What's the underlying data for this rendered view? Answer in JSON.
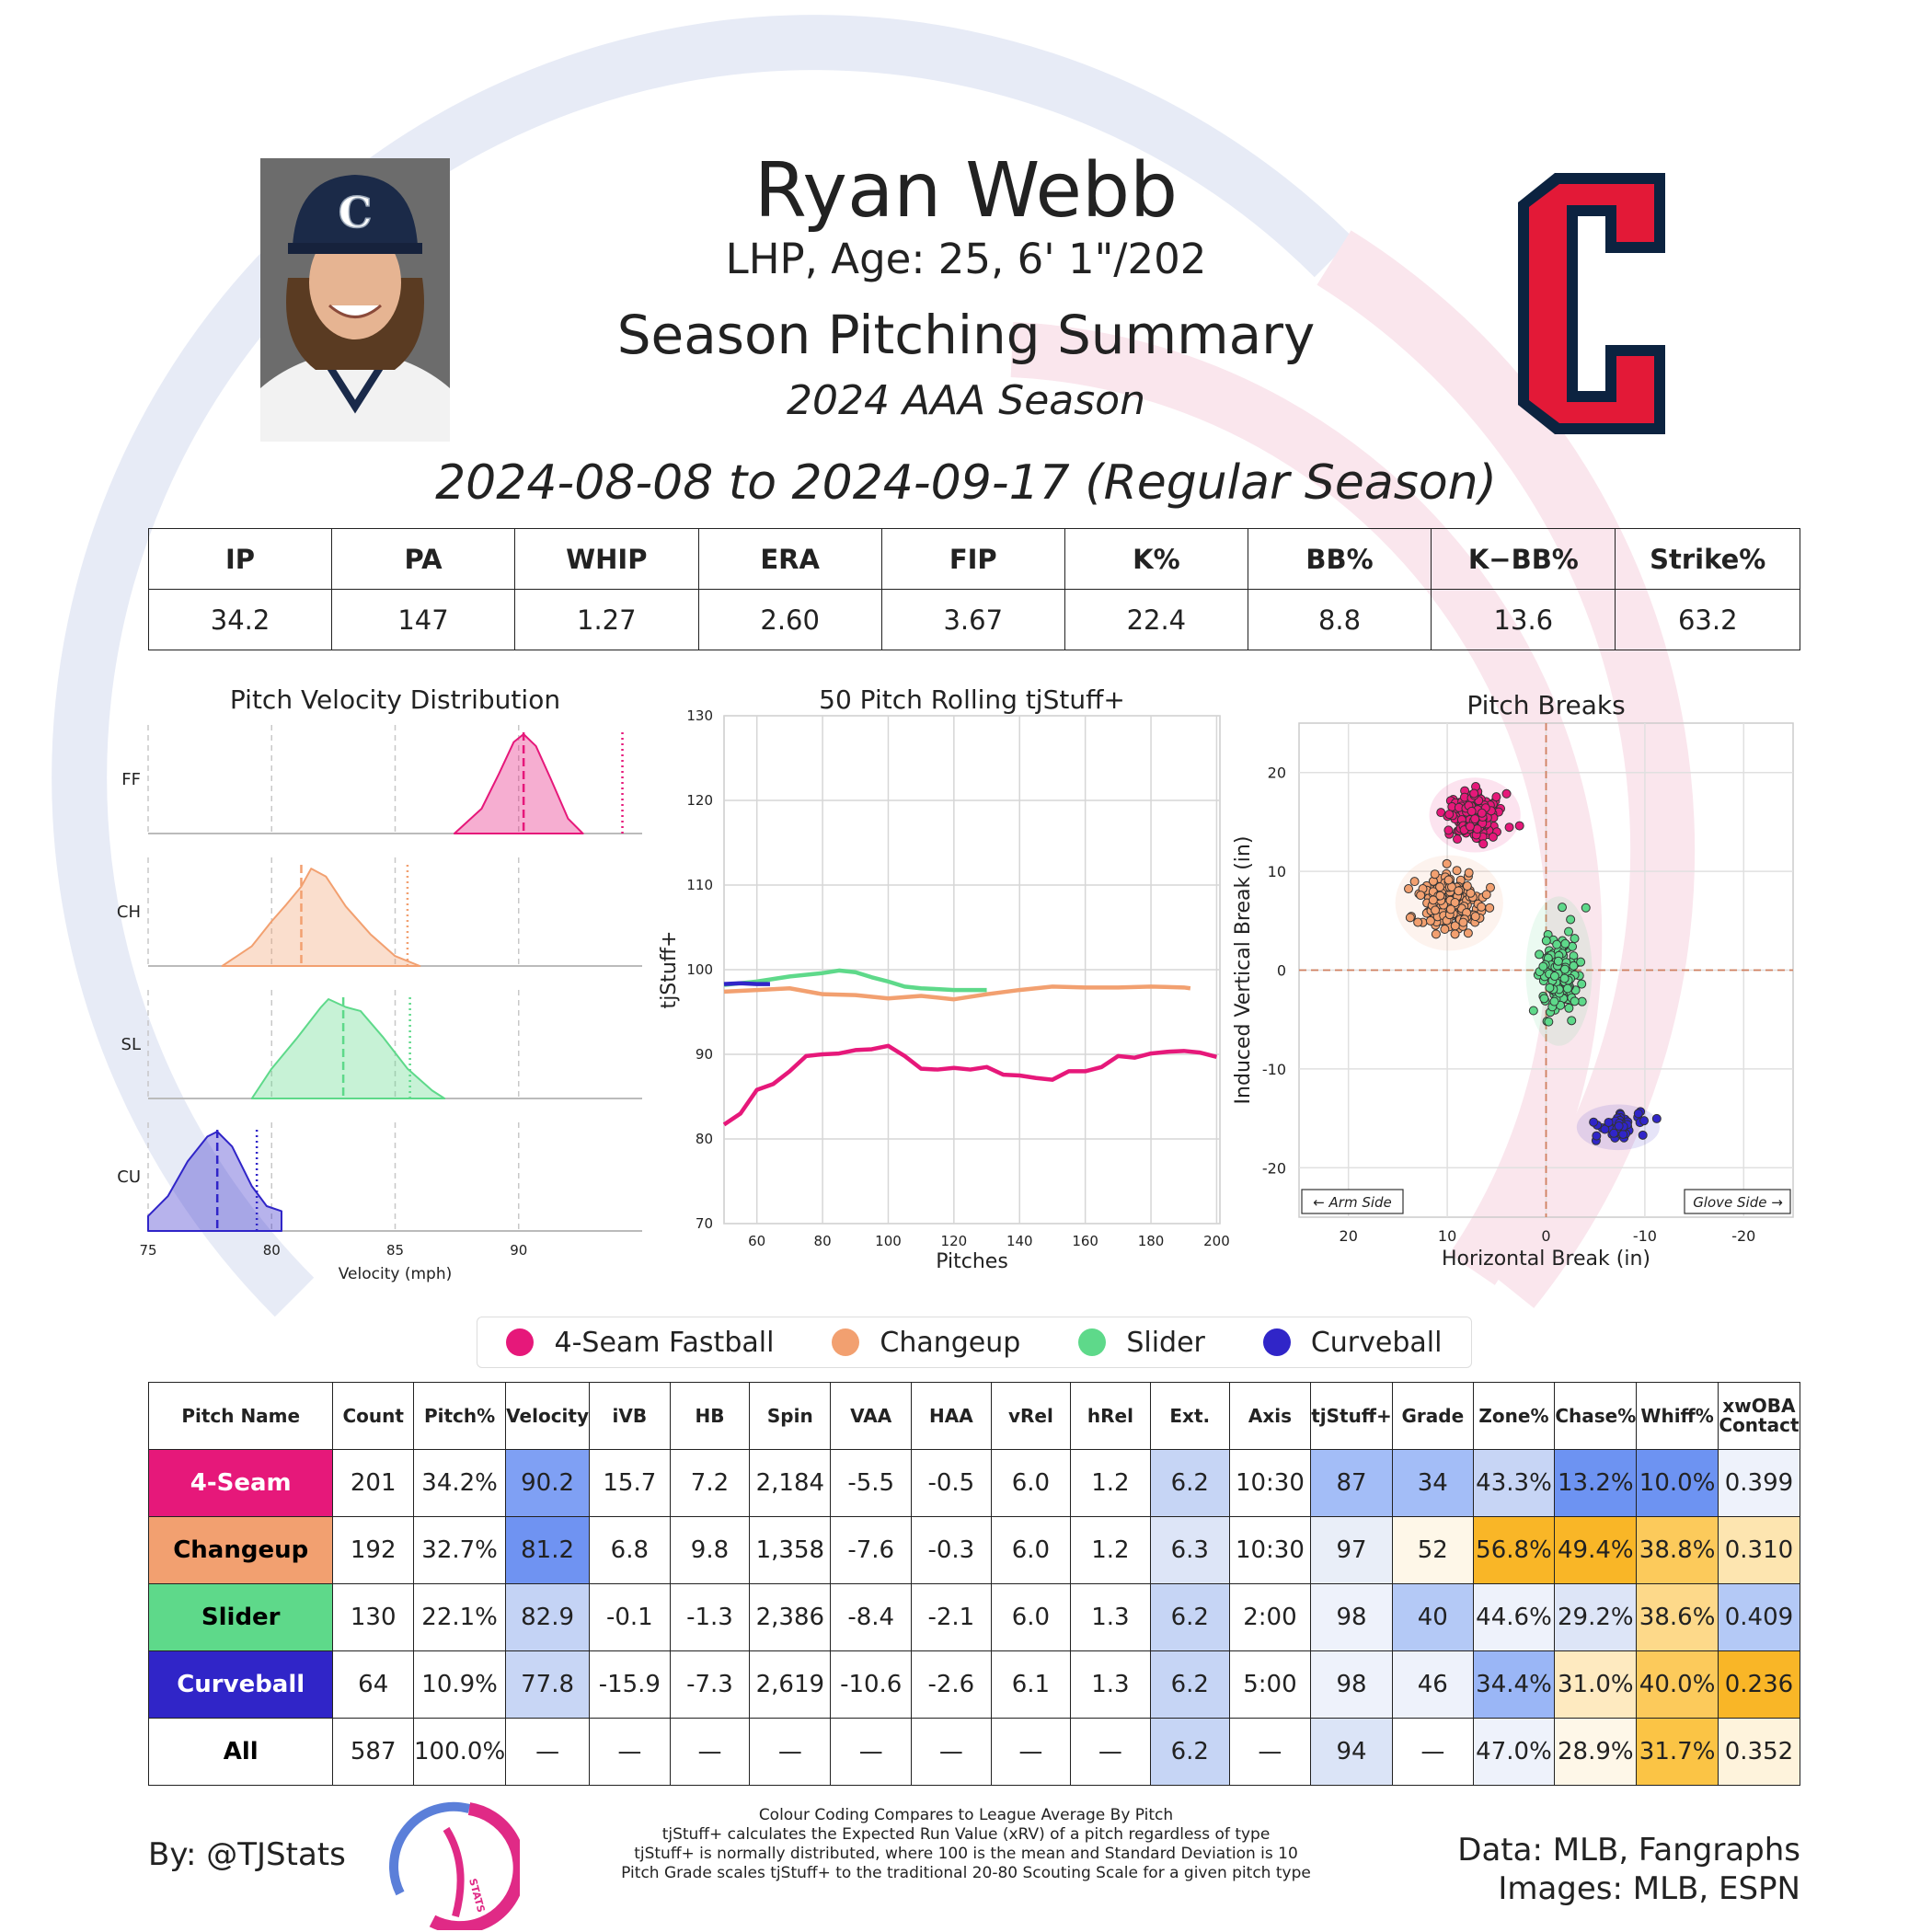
{
  "header": {
    "name": "Ryan Webb",
    "info": "LHP, Age: 25, 6' 1\"/202",
    "summary_title": "Season Pitching Summary",
    "season": "2024 AAA Season",
    "date_range": "2024-08-08 to 2024-09-17 (Regular Season)"
  },
  "stats": {
    "headers": [
      "IP",
      "PA",
      "WHIP",
      "ERA",
      "FIP",
      "K%",
      "BB%",
      "K−BB%",
      "Strike%"
    ],
    "values": [
      "34.2",
      "147",
      "1.27",
      "2.60",
      "3.67",
      "22.4",
      "8.8",
      "13.6",
      "63.2"
    ]
  },
  "colors": {
    "ff": "#e6187a",
    "ch": "#f2a070",
    "sl": "#5ed98a",
    "cu": "#3025c8",
    "team_red": "#e31937",
    "team_navy": "#0c2340"
  },
  "chart_data": [
    {
      "type": "area",
      "title": "Pitch Velocity Distribution",
      "xlabel": "Velocity (mph)",
      "xlim": [
        75,
        95
      ],
      "xticks": [
        75,
        80,
        85,
        90
      ],
      "series": [
        {
          "name": "FF",
          "mean": 90.2,
          "league_avg": 94.2,
          "x": [
            87.4,
            88.5,
            89.2,
            89.8,
            90.2,
            90.7,
            91.3,
            92.0,
            92.6
          ],
          "density": [
            0,
            0.25,
            0.6,
            0.92,
            1.0,
            0.88,
            0.55,
            0.15,
            0
          ]
        },
        {
          "name": "CH",
          "mean": 81.2,
          "league_avg": 85.5,
          "x": [
            78.0,
            79.2,
            80.0,
            80.6,
            81.2,
            81.6,
            82.2,
            83.0,
            84.0,
            85.0,
            86.0
          ],
          "density": [
            0,
            0.2,
            0.45,
            0.62,
            0.8,
            0.98,
            0.9,
            0.6,
            0.32,
            0.1,
            0
          ]
        },
        {
          "name": "SL",
          "mean": 82.9,
          "league_avg": 85.6,
          "x": [
            79.2,
            80.0,
            81.0,
            82.0,
            82.3,
            83.0,
            83.6,
            84.5,
            85.5,
            86.5,
            87.0
          ],
          "density": [
            0,
            0.3,
            0.6,
            0.92,
            1.0,
            0.92,
            0.88,
            0.62,
            0.3,
            0.08,
            0
          ]
        },
        {
          "name": "CU",
          "mean": 77.8,
          "league_avg": 79.4,
          "x": [
            75.0,
            75.8,
            76.6,
            77.4,
            77.8,
            78.4,
            79.2,
            79.8,
            80.4
          ],
          "density": [
            0.15,
            0.35,
            0.7,
            0.95,
            1.0,
            0.85,
            0.45,
            0.25,
            0.2
          ]
        }
      ]
    },
    {
      "type": "line",
      "title": "50 Pitch Rolling tjStuff+",
      "xlabel": "Pitches",
      "ylabel": "tjStuff+",
      "xlim": [
        50,
        201
      ],
      "ylim": [
        70,
        130
      ],
      "xticks": [
        60,
        80,
        100,
        120,
        140,
        160,
        180,
        200
      ],
      "yticks": [
        70,
        80,
        90,
        100,
        110,
        120,
        130
      ],
      "series": [
        {
          "name": "4-Seam Fastball",
          "x": [
            50,
            55,
            60,
            65,
            70,
            75,
            80,
            85,
            90,
            95,
            100,
            105,
            110,
            115,
            120,
            125,
            130,
            135,
            140,
            145,
            150,
            155,
            160,
            165,
            170,
            175,
            180,
            185,
            190,
            195,
            200
          ],
          "y": [
            81.7,
            83,
            85.8,
            86.5,
            88,
            89.8,
            90,
            90.1,
            90.5,
            90.6,
            91.0,
            89.8,
            88.3,
            88.2,
            88.4,
            88.2,
            88.5,
            87.6,
            87.5,
            87.2,
            87.0,
            88.0,
            88.0,
            88.5,
            89.8,
            89.6,
            90.1,
            90.3,
            90.4,
            90.2,
            89.7
          ]
        },
        {
          "name": "Changeup",
          "x": [
            50,
            60,
            70,
            80,
            90,
            100,
            110,
            120,
            130,
            140,
            150,
            160,
            170,
            180,
            190,
            192
          ],
          "y": [
            97.4,
            97.6,
            97.8,
            97.1,
            97.0,
            96.6,
            96.9,
            96.5,
            97.1,
            97.6,
            98.0,
            97.9,
            97.9,
            98.0,
            97.9,
            97.8
          ]
        },
        {
          "name": "Slider",
          "x": [
            50,
            60,
            70,
            80,
            85,
            90,
            95,
            100,
            105,
            110,
            115,
            120,
            125,
            130
          ],
          "y": [
            98.2,
            98.6,
            99.2,
            99.6,
            99.9,
            99.7,
            99.1,
            98.6,
            98.0,
            97.8,
            97.7,
            97.6,
            97.6,
            97.6
          ]
        },
        {
          "name": "Curveball",
          "x": [
            50,
            55,
            60,
            64
          ],
          "y": [
            98.3,
            98.4,
            98.3,
            98.3
          ]
        }
      ]
    },
    {
      "type": "scatter",
      "title": "Pitch Breaks",
      "xlabel": "Horizontal Break (in)",
      "ylabel": "Induced Vertical Break (in)",
      "xlim": [
        25,
        -25
      ],
      "ylim": [
        -25,
        25
      ],
      "xticks": [
        20,
        10,
        0,
        -10,
        -20
      ],
      "yticks": [
        20,
        10,
        0,
        -10,
        -20
      ],
      "annotations": [
        "← Arm Side",
        "Glove Side →"
      ],
      "series": [
        {
          "name": "4-Seam Fastball",
          "center": [
            7.2,
            15.7
          ],
          "spread": [
            2.2,
            1.8
          ],
          "count": 201
        },
        {
          "name": "Changeup",
          "center": [
            9.8,
            6.8
          ],
          "spread": [
            2.6,
            2.3
          ],
          "count": 192
        },
        {
          "name": "Slider",
          "center": [
            -1.3,
            -0.1
          ],
          "spread": [
            1.6,
            3.6
          ],
          "count": 130
        },
        {
          "name": "Curveball",
          "center": [
            -7.3,
            -15.9
          ],
          "spread": [
            2.0,
            1.1
          ],
          "count": 64
        }
      ]
    }
  ],
  "legend": [
    "4-Seam Fastball",
    "Changeup",
    "Slider",
    "Curveball"
  ],
  "pitch_table": {
    "headers": [
      "Pitch Name",
      "Count",
      "Pitch%",
      "Velocity",
      "iVB",
      "HB",
      "Spin",
      "VAA",
      "HAA",
      "vRel",
      "hRel",
      "Ext.",
      "Axis",
      "tjStuff+",
      "Grade",
      "Zone%",
      "Chase%",
      "Whiff%",
      "xwOBA\nContact"
    ],
    "rows": [
      {
        "name": "4-Seam",
        "cells": [
          "201",
          "34.2%",
          "90.2",
          "15.7",
          "7.2",
          "2,184",
          "-5.5",
          "-0.5",
          "6.0",
          "1.2",
          "6.2",
          "10:30",
          "87",
          "34",
          "43.3%",
          "13.2%",
          "10.0%",
          "0.399"
        ]
      },
      {
        "name": "Changeup",
        "cells": [
          "192",
          "32.7%",
          "81.2",
          "6.8",
          "9.8",
          "1,358",
          "-7.6",
          "-0.3",
          "6.0",
          "1.2",
          "6.3",
          "10:30",
          "97",
          "52",
          "56.8%",
          "49.4%",
          "38.8%",
          "0.310"
        ]
      },
      {
        "name": "Slider",
        "cells": [
          "130",
          "22.1%",
          "82.9",
          "-0.1",
          "-1.3",
          "2,386",
          "-8.4",
          "-2.1",
          "6.0",
          "1.3",
          "6.2",
          "2:00",
          "98",
          "40",
          "44.6%",
          "29.2%",
          "38.6%",
          "0.409"
        ]
      },
      {
        "name": "Curveball",
        "cells": [
          "64",
          "10.9%",
          "77.8",
          "-15.9",
          "-7.3",
          "2,619",
          "-10.6",
          "-2.6",
          "6.1",
          "1.3",
          "6.2",
          "5:00",
          "98",
          "46",
          "34.4%",
          "31.0%",
          "40.0%",
          "0.236"
        ]
      },
      {
        "name": "All",
        "cells": [
          "587",
          "100.0%",
          "—",
          "—",
          "—",
          "—",
          "—",
          "—",
          "—",
          "—",
          "6.2",
          "—",
          "94",
          "—",
          "47.0%",
          "28.9%",
          "31.7%",
          "0.352"
        ]
      }
    ],
    "name_colors": [
      "#e6187a",
      "#f2a070",
      "#5ed98a",
      "#3025c8",
      "#ffffff"
    ],
    "name_text_colors": [
      "#ffffff",
      "#000000",
      "#000000",
      "#ffffff",
      "#000000"
    ],
    "cell_colors": [
      [
        "",
        "",
        "#7fa0f4",
        "",
        "",
        "",
        "",
        "",
        "",
        "",
        "#c6d5f5",
        "",
        "#a3bdf7",
        "#a3bdf7",
        "#c7d5f5",
        "#6d93f2",
        "#6d93f2",
        "#eef2fb"
      ],
      [
        "",
        "",
        "#6f93f2",
        "",
        "",
        "",
        "",
        "",
        "",
        "",
        "#dde5f7",
        "",
        "#e9eef8",
        "#fef7e8",
        "#f9b627",
        "#f9b627",
        "#fcca5b",
        "#fde5b0"
      ],
      [
        "",
        "",
        "#c4d3f5",
        "",
        "",
        "",
        "",
        "",
        "",
        "",
        "#c6d5f5",
        "",
        "#eef2fb",
        "#b4c9f6",
        "#eef2fb",
        "#dde5f7",
        "#fdd98a",
        "#b4c9f6"
      ],
      [
        "",
        "",
        "#c8d6f5",
        "",
        "",
        "",
        "",
        "",
        "",
        "",
        "#c6d5f5",
        "",
        "#eef2fb",
        "#eef2fb",
        "#9ab6f6",
        "#feeac0",
        "#fcca5b",
        "#f9b627"
      ],
      [
        "",
        "",
        "",
        "",
        "",
        "",
        "",
        "",
        "",
        "",
        "#c6d5f5",
        "",
        "#dbe4f7",
        "",
        "#eef2fb",
        "#fef7e8",
        "#fbc445",
        "#fef3dc"
      ]
    ]
  },
  "footer": {
    "by": "By: @TJStats",
    "notes": [
      "Colour Coding Compares to League Average By Pitch",
      "tjStuff+ calculates the Expected Run Value (xRV) of a pitch regardless of type",
      "tjStuff+ is normally distributed, where 100 is the mean and Standard Deviation is 10",
      "Pitch Grade scales tjStuff+ to the traditional 20-80 Scouting Scale for a given pitch type"
    ],
    "data_source": "Data: MLB, Fangraphs",
    "image_source": "Images: MLB, ESPN",
    "logo_text": "STATS"
  }
}
